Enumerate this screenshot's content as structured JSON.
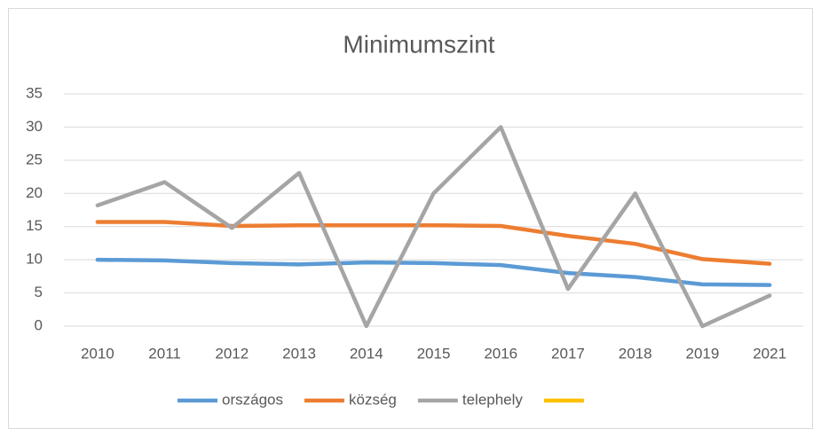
{
  "chart_data": {
    "type": "line",
    "title": "Minimumszint",
    "categories": [
      "2010",
      "2011",
      "2012",
      "2013",
      "2014",
      "2015",
      "2016",
      "2017",
      "2018",
      "2019",
      "2021"
    ],
    "series": [
      {
        "name": "országos",
        "color": "#5b9bd5",
        "values": [
          10,
          9.9,
          9.5,
          9.3,
          9.6,
          9.5,
          9.2,
          8,
          7.4,
          6.3,
          6.2
        ]
      },
      {
        "name": "község",
        "color": "#ed7d31",
        "values": [
          15.7,
          15.7,
          15.1,
          15.2,
          15.2,
          15.2,
          15.1,
          13.6,
          12.4,
          10.1,
          9.4
        ]
      },
      {
        "name": "telephely",
        "color": "#a5a5a5",
        "values": [
          18.2,
          21.7,
          14.8,
          23.1,
          0,
          20,
          30,
          5.6,
          20,
          0,
          4.6
        ]
      },
      {
        "color": "#ffc000",
        "values": [
          null,
          null,
          null,
          null,
          null,
          null,
          null,
          null,
          null,
          null,
          null
        ]
      }
    ],
    "ylim": [
      0,
      35
    ],
    "yticks": [
      0,
      5,
      10,
      15,
      20,
      25,
      30,
      35
    ],
    "grid": true,
    "legend": "bottom"
  }
}
